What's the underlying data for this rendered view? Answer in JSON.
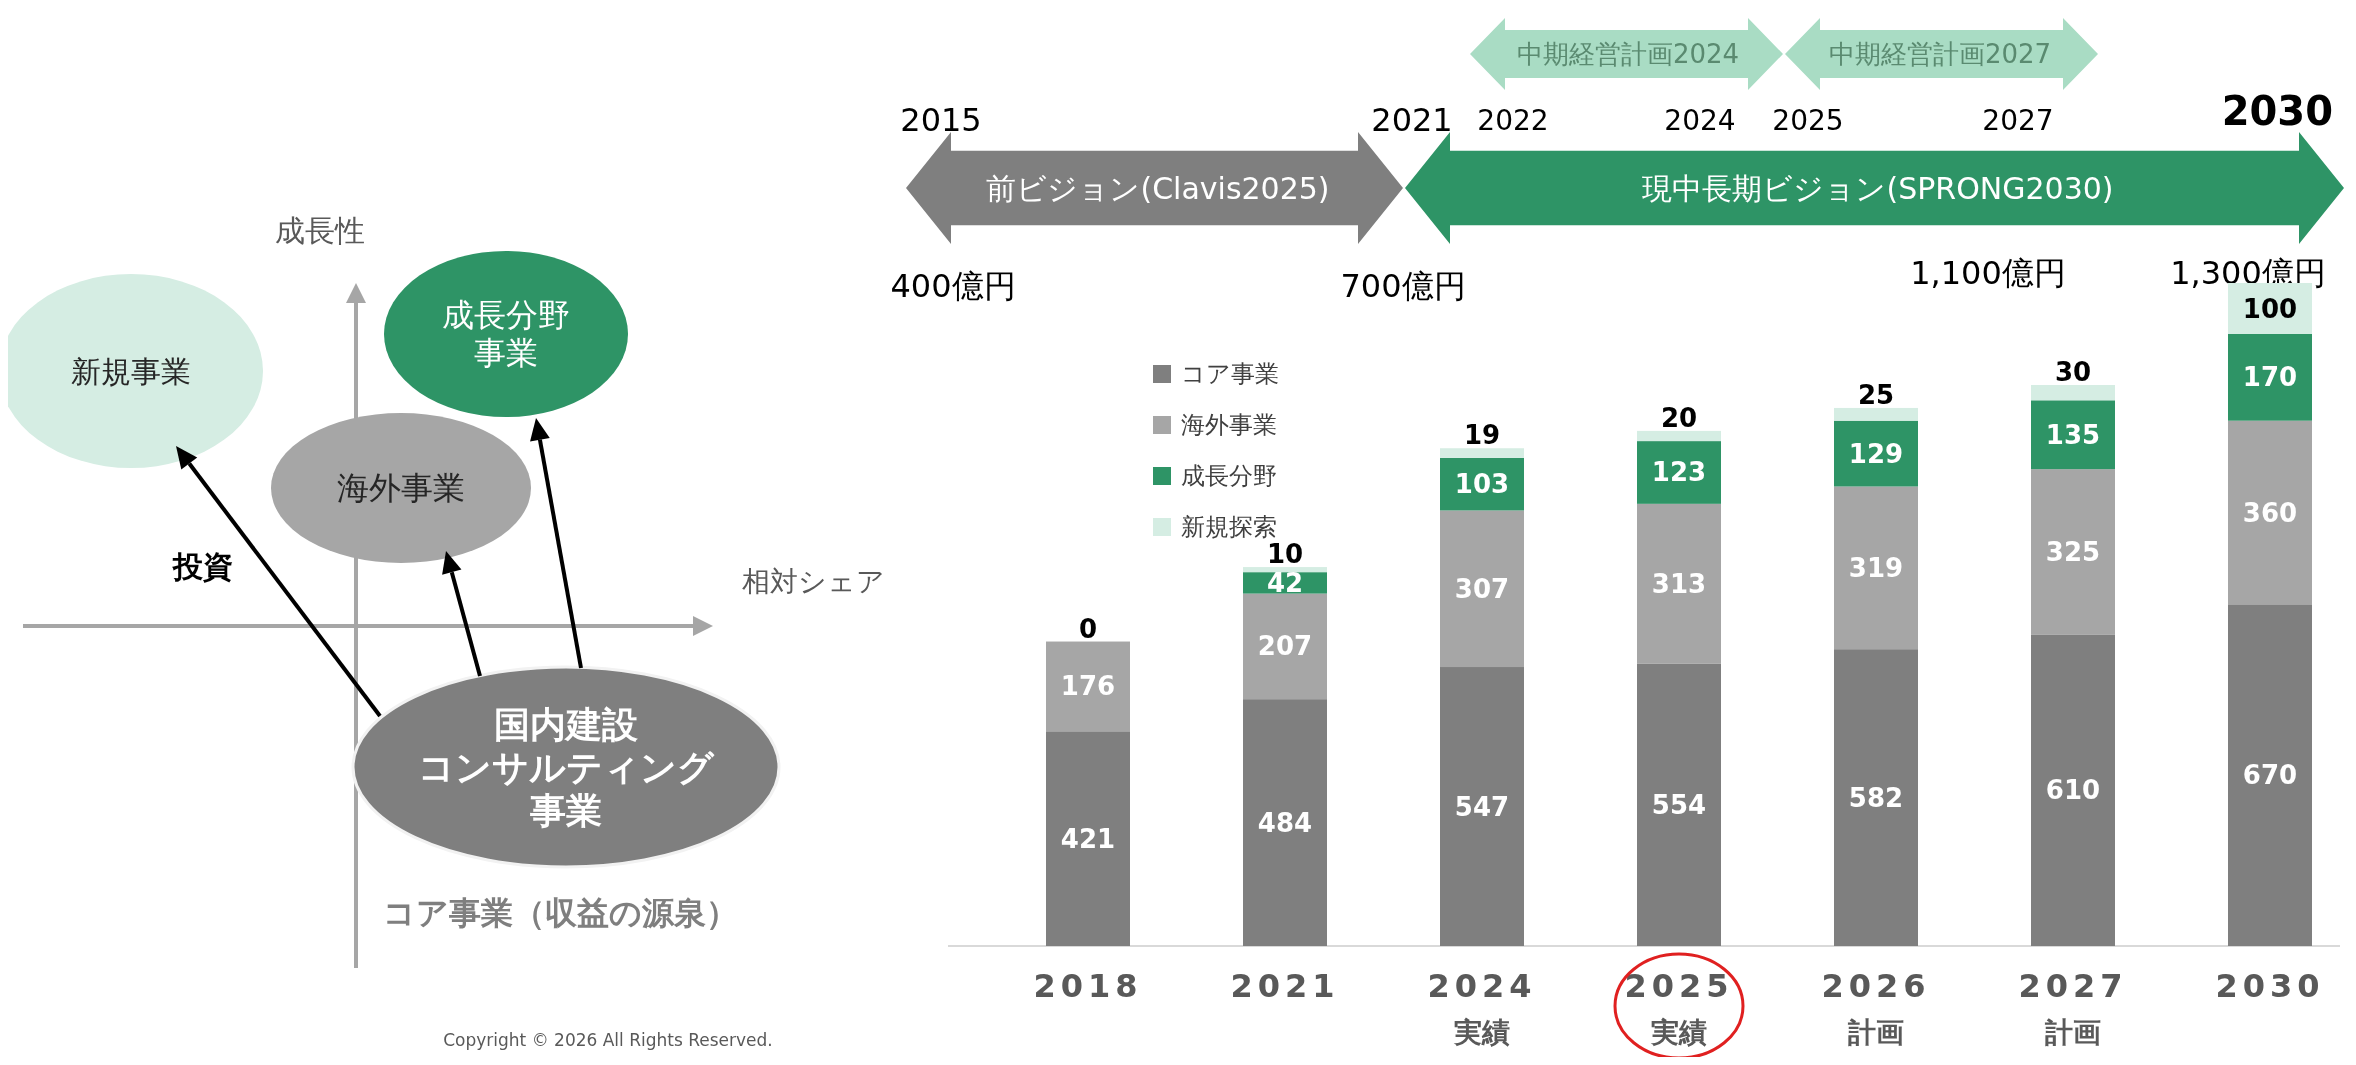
{
  "chart_data": [
    {
      "type": "other",
      "annotations": [
        "成長性",
        "相対シェア",
        "新規事業",
        "成長分野事業",
        "海外事業",
        "投資",
        "国内建設コンサルティング事業",
        "コア事業（収益の源泉）",
        "Copyright © 2026 All Rights Reserved."
      ]
    },
    {
      "type": "bar",
      "stacked": true,
      "legend": "top left",
      "categories": [
        "2018",
        "2021",
        "2024\n実績",
        "2025\n実績",
        "2026\n計画",
        "2027\n計画",
        "2030"
      ],
      "series": [
        {
          "name": "コア事業",
          "color": "#7f7f7f",
          "values": [
            421,
            484,
            547,
            554,
            582,
            610,
            670
          ],
          "value_labels": [
            "421",
            "484",
            "547",
            "554",
            "582",
            "610",
            "670"
          ]
        },
        {
          "name": "海外事業",
          "color": "#a6a6a6",
          "values": [
            176,
            207,
            307,
            313,
            319,
            325,
            360
          ],
          "value_labels": [
            "176",
            "207",
            "307",
            "313",
            "319",
            "325",
            "360"
          ]
        },
        {
          "name": "成長分野",
          "color": "#2e9466",
          "values": [
            0,
            42,
            103,
            123,
            129,
            135,
            170
          ],
          "value_labels": [
            null,
            "42",
            "103",
            "123",
            "129",
            "135",
            "170"
          ]
        },
        {
          "name": "新規探索",
          "color": "#d5ede3",
          "values": [
            0,
            10,
            19,
            20,
            25,
            30,
            100
          ],
          "value_labels": [
            "0",
            "10",
            "19",
            "20",
            "25",
            "30",
            "100"
          ]
        }
      ],
      "annotations": [
        "2015",
        "2021",
        "2022",
        "2024",
        "2025",
        "2027",
        "2030",
        "前ビジョン(Clavis2025)",
        "現中長期ビジョン(SPRONG2030)",
        "中期経営計画2024",
        "中期経営計画2027",
        "400億円",
        "700億円",
        "1,100億円",
        "1,300億円"
      ]
    }
  ]
}
